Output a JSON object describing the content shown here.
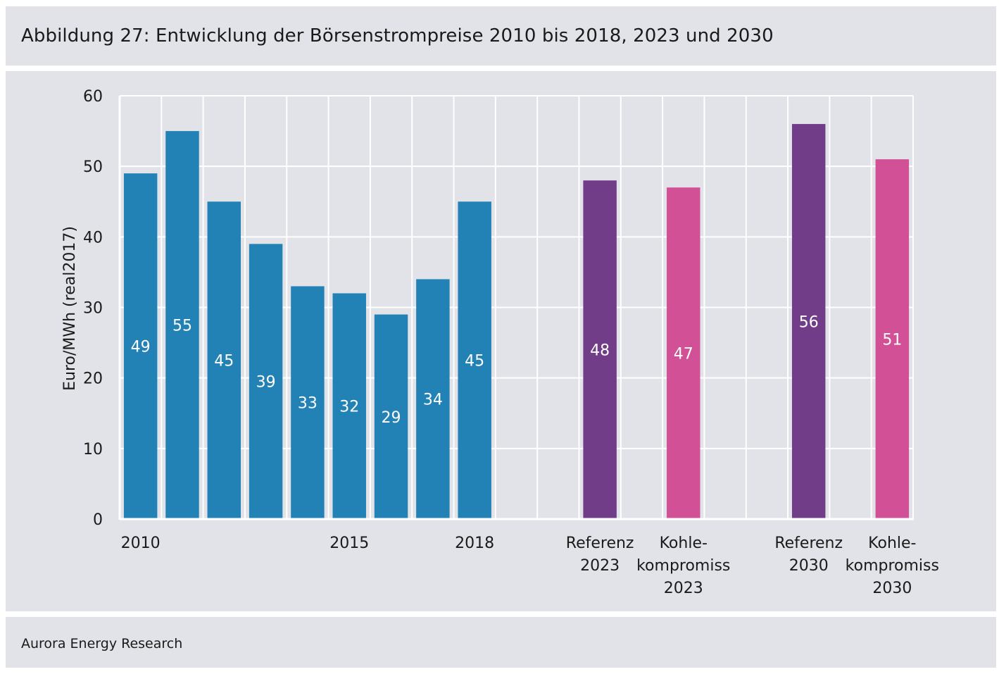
{
  "figure": {
    "title": "Abbildung 27: Entwicklung der Börsenstrompreise 2010 bis 2018, 2023 und 2030",
    "source": "Aurora Energy Research"
  },
  "chart_data": {
    "type": "bar",
    "title": "",
    "xlabel": "",
    "ylabel": "Euro/MWh (real2017)",
    "ylim": [
      0,
      60
    ],
    "yticks": [
      0,
      10,
      20,
      30,
      40,
      50,
      60
    ],
    "grid": true,
    "colors": {
      "historic": "#2282b5",
      "referenz": "#723d88",
      "kohle": "#d15096"
    },
    "bars": [
      {
        "label": "2010",
        "value": 49,
        "color": "historic"
      },
      {
        "label": "",
        "value": 55,
        "color": "historic"
      },
      {
        "label": "",
        "value": 45,
        "color": "historic"
      },
      {
        "label": "",
        "value": 39,
        "color": "historic"
      },
      {
        "label": "",
        "value": 33,
        "color": "historic"
      },
      {
        "label": "2015",
        "value": 32,
        "color": "historic"
      },
      {
        "label": "",
        "value": 29,
        "color": "historic"
      },
      {
        "label": "",
        "value": 34,
        "color": "historic"
      },
      {
        "label": "2018",
        "value": 45,
        "color": "historic"
      },
      {
        "label": "",
        "value": null
      },
      {
        "label": "",
        "value": null
      },
      {
        "label": [
          "Referenz",
          "2023"
        ],
        "value": 48,
        "color": "referenz"
      },
      {
        "label": "",
        "value": null
      },
      {
        "label": [
          "Kohle-",
          "kompromiss",
          "2023"
        ],
        "value": 47,
        "color": "kohle"
      },
      {
        "label": "",
        "value": null
      },
      {
        "label": "",
        "value": null
      },
      {
        "label": [
          "Referenz",
          "2030"
        ],
        "value": 56,
        "color": "referenz"
      },
      {
        "label": "",
        "value": null
      },
      {
        "label": [
          "Kohle-",
          "kompromiss",
          "2030"
        ],
        "value": 51,
        "color": "kohle"
      }
    ]
  }
}
